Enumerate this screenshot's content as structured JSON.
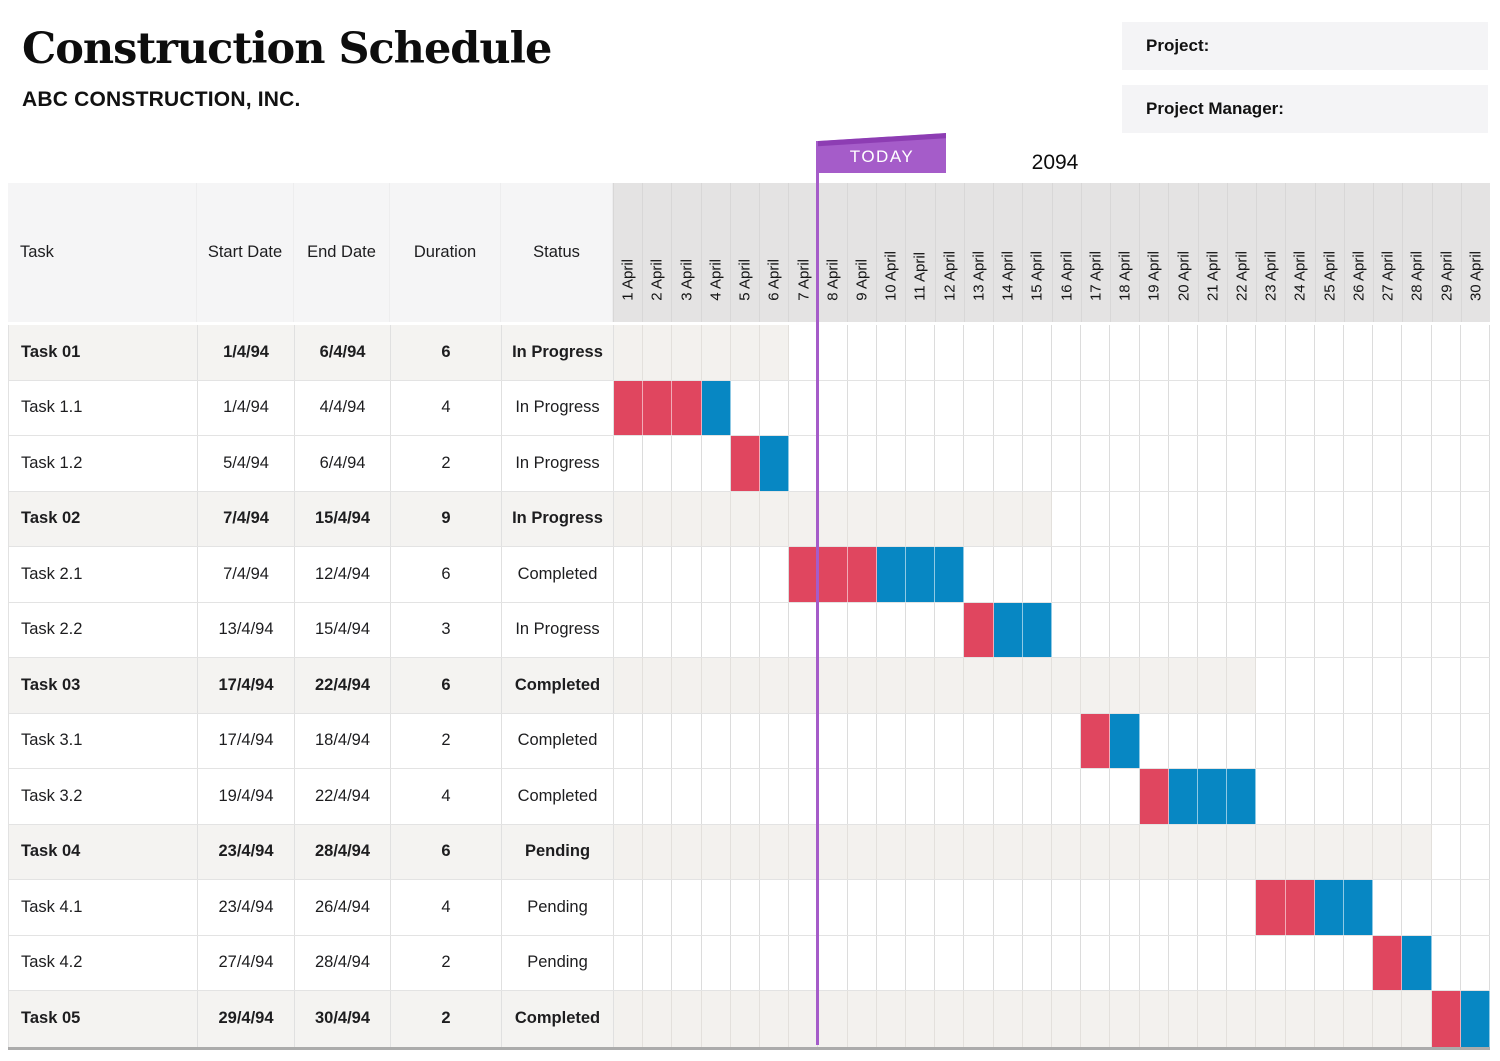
{
  "header": {
    "title": "Construction Schedule",
    "subtitle": "ABC CONSTRUCTION, INC."
  },
  "project_panel": {
    "fields": [
      {
        "label": "Project:",
        "value": ""
      },
      {
        "label": "Project Manager:",
        "value": ""
      }
    ]
  },
  "timeline": {
    "year": "2094",
    "today_label": "TODAY",
    "today_line_after_day": 7,
    "days": [
      "1 April",
      "2 April",
      "3 April",
      "4 April",
      "5 April",
      "6 April",
      "7 April",
      "8 April",
      "9 April",
      "10 April",
      "11 April",
      "12 April",
      "13 April",
      "14 April",
      "15 April",
      "16 April",
      "17 April",
      "18 April",
      "19 April",
      "20 April",
      "21 April",
      "22 April",
      "23 April",
      "24 April",
      "25 April",
      "26 April",
      "27 April",
      "28 April",
      "29 April",
      "30 April"
    ]
  },
  "table": {
    "headers": {
      "task": "Task",
      "start": "Start Date",
      "end": "End Date",
      "duration": "Duration",
      "status": "Status"
    },
    "rows": [
      {
        "task": "Task 01",
        "start_date": "1/4/94",
        "end_date": "6/4/94",
        "duration": "6",
        "status": "In Progress",
        "is_parent": true,
        "shade_to": 6,
        "red_days": [],
        "blue_days": []
      },
      {
        "task": "Task 1.1",
        "start_date": "1/4/94",
        "end_date": "4/4/94",
        "duration": "4",
        "status": "In Progress",
        "is_parent": false,
        "shade_to": 0,
        "red_days": [
          1,
          2,
          3
        ],
        "blue_days": [
          4
        ]
      },
      {
        "task": "Task 1.2",
        "start_date": "5/4/94",
        "end_date": "6/4/94",
        "duration": "2",
        "status": "In Progress",
        "is_parent": false,
        "shade_to": 0,
        "red_days": [
          5
        ],
        "blue_days": [
          6
        ]
      },
      {
        "task": "Task 02",
        "start_date": "7/4/94",
        "end_date": "15/4/94",
        "duration": "9",
        "status": "In Progress",
        "is_parent": true,
        "shade_to": 15,
        "red_days": [],
        "blue_days": []
      },
      {
        "task": "Task 2.1",
        "start_date": "7/4/94",
        "end_date": "12/4/94",
        "duration": "6",
        "status": "Completed",
        "is_parent": false,
        "shade_to": 0,
        "red_days": [
          7,
          8,
          9
        ],
        "blue_days": [
          10,
          11,
          12
        ]
      },
      {
        "task": "Task 2.2",
        "start_date": "13/4/94",
        "end_date": "15/4/94",
        "duration": "3",
        "status": "In Progress",
        "is_parent": false,
        "shade_to": 0,
        "red_days": [
          13
        ],
        "blue_days": [
          14,
          15
        ]
      },
      {
        "task": "Task 03",
        "start_date": "17/4/94",
        "end_date": "22/4/94",
        "duration": "6",
        "status": "Completed",
        "is_parent": true,
        "shade_to": 22,
        "red_days": [],
        "blue_days": []
      },
      {
        "task": "Task 3.1",
        "start_date": "17/4/94",
        "end_date": "18/4/94",
        "duration": "2",
        "status": "Completed",
        "is_parent": false,
        "shade_to": 0,
        "red_days": [
          17
        ],
        "blue_days": [
          18
        ]
      },
      {
        "task": "Task 3.2",
        "start_date": "19/4/94",
        "end_date": "22/4/94",
        "duration": "4",
        "status": "Completed",
        "is_parent": false,
        "shade_to": 0,
        "red_days": [
          19
        ],
        "blue_days": [
          20,
          21,
          22
        ]
      },
      {
        "task": "Task 04",
        "start_date": "23/4/94",
        "end_date": "28/4/94",
        "duration": "6",
        "status": "Pending",
        "is_parent": true,
        "shade_to": 28,
        "red_days": [],
        "blue_days": []
      },
      {
        "task": "Task 4.1",
        "start_date": "23/4/94",
        "end_date": "26/4/94",
        "duration": "4",
        "status": "Pending",
        "is_parent": false,
        "shade_to": 0,
        "red_days": [
          23,
          24
        ],
        "blue_days": [
          25,
          26
        ]
      },
      {
        "task": "Task 4.2",
        "start_date": "27/4/94",
        "end_date": "28/4/94",
        "duration": "2",
        "status": "Pending",
        "is_parent": false,
        "shade_to": 0,
        "red_days": [
          27
        ],
        "blue_days": [
          28
        ]
      },
      {
        "task": "Task 05",
        "start_date": "29/4/94",
        "end_date": "30/4/94",
        "duration": "2",
        "status": "Completed",
        "is_parent": true,
        "shade_to": 30,
        "red_days": [
          29
        ],
        "blue_days": [
          30
        ]
      }
    ]
  },
  "chart_data": {
    "type": "bar",
    "subtype": "gantt",
    "title": "Construction Schedule",
    "xlabel": "Day of April (year label shown: 2094)",
    "x_range": [
      1,
      30
    ],
    "today_marker_between_days": [
      7,
      8
    ],
    "legend": "red = first segment of task bar, blue = final segment of task bar; gray band on summary rows spans day 1 to task end date",
    "tasks": [
      {
        "name": "Task 01",
        "start_day": 1,
        "end_day": 6,
        "duration": 6,
        "status": "In Progress",
        "summary": true
      },
      {
        "name": "Task 1.1",
        "start_day": 1,
        "end_day": 4,
        "duration": 4,
        "status": "In Progress",
        "red_segment": [
          1,
          3
        ],
        "blue_segment": [
          4,
          4
        ]
      },
      {
        "name": "Task 1.2",
        "start_day": 5,
        "end_day": 6,
        "duration": 2,
        "status": "In Progress",
        "red_segment": [
          5,
          5
        ],
        "blue_segment": [
          6,
          6
        ]
      },
      {
        "name": "Task 02",
        "start_day": 7,
        "end_day": 15,
        "duration": 9,
        "status": "In Progress",
        "summary": true
      },
      {
        "name": "Task 2.1",
        "start_day": 7,
        "end_day": 12,
        "duration": 6,
        "status": "Completed",
        "red_segment": [
          7,
          9
        ],
        "blue_segment": [
          10,
          12
        ]
      },
      {
        "name": "Task 2.2",
        "start_day": 13,
        "end_day": 15,
        "duration": 3,
        "status": "In Progress",
        "red_segment": [
          13,
          13
        ],
        "blue_segment": [
          14,
          15
        ]
      },
      {
        "name": "Task 03",
        "start_day": 17,
        "end_day": 22,
        "duration": 6,
        "status": "Completed",
        "summary": true
      },
      {
        "name": "Task 3.1",
        "start_day": 17,
        "end_day": 18,
        "duration": 2,
        "status": "Completed",
        "red_segment": [
          17,
          17
        ],
        "blue_segment": [
          18,
          18
        ]
      },
      {
        "name": "Task 3.2",
        "start_day": 19,
        "end_day": 22,
        "duration": 4,
        "status": "Completed",
        "red_segment": [
          19,
          19
        ],
        "blue_segment": [
          20,
          22
        ]
      },
      {
        "name": "Task 04",
        "start_day": 23,
        "end_day": 28,
        "duration": 6,
        "status": "Pending",
        "summary": true
      },
      {
        "name": "Task 4.1",
        "start_day": 23,
        "end_day": 26,
        "duration": 4,
        "status": "Pending",
        "red_segment": [
          23,
          24
        ],
        "blue_segment": [
          25,
          26
        ]
      },
      {
        "name": "Task 4.2",
        "start_day": 27,
        "end_day": 28,
        "duration": 2,
        "status": "Pending",
        "red_segment": [
          27,
          27
        ],
        "blue_segment": [
          28,
          28
        ]
      },
      {
        "name": "Task 05",
        "start_day": 29,
        "end_day": 30,
        "duration": 2,
        "status": "Completed",
        "summary": true,
        "red_segment": [
          29,
          29
        ],
        "blue_segment": [
          30,
          30
        ]
      }
    ]
  },
  "colors": {
    "bar_red": "#e0465f",
    "bar_blue": "#0787c3",
    "today_purple": "#a55cc9",
    "today_purple_dark": "#8d3db3",
    "date_header_bg": "#e4e3e3",
    "left_header_bg": "#f5f5f6",
    "summary_row_bg": "#f4f3f1",
    "summary_shade_bg": "#f3f1ee"
  }
}
